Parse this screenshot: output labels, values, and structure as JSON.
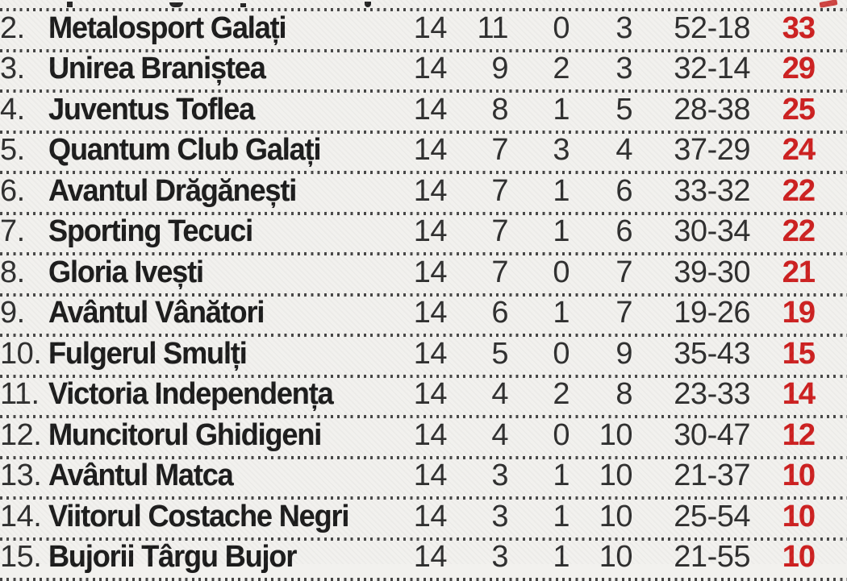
{
  "colors": {
    "background": "#f2f1ee",
    "team_text": "#1b1b1b",
    "stat_text": "#2e2e2e",
    "points_red": "#cd1f1f",
    "separator_dots": "#2e2e2e"
  },
  "table": {
    "description_visible_columns": [
      "position",
      "team",
      "played",
      "won",
      "drawn",
      "lost",
      "goals",
      "points"
    ],
    "rows": [
      {
        "pos": "2.",
        "team": "Metalosport Galați",
        "played": "14",
        "won": "11",
        "drawn": "0",
        "lost": "3",
        "goals": "52-18",
        "points": "33"
      },
      {
        "pos": "3.",
        "team": "Unirea Braniștea",
        "played": "14",
        "won": "9",
        "drawn": "2",
        "lost": "3",
        "goals": "32-14",
        "points": "29"
      },
      {
        "pos": "4.",
        "team": "Juventus Toflea",
        "played": "14",
        "won": "8",
        "drawn": "1",
        "lost": "5",
        "goals": "28-38",
        "points": "25"
      },
      {
        "pos": "5.",
        "team": "Quantum Club Galați",
        "played": "14",
        "won": "7",
        "drawn": "3",
        "lost": "4",
        "goals": "37-29",
        "points": "24"
      },
      {
        "pos": "6.",
        "team": "Avantul Drăgănești",
        "played": "14",
        "won": "7",
        "drawn": "1",
        "lost": "6",
        "goals": "33-32",
        "points": "22"
      },
      {
        "pos": "7.",
        "team": "Sporting Tecuci",
        "played": "14",
        "won": "7",
        "drawn": "1",
        "lost": "6",
        "goals": "30-34",
        "points": "22"
      },
      {
        "pos": "8.",
        "team": "Gloria Ivești",
        "played": "14",
        "won": "7",
        "drawn": "0",
        "lost": "7",
        "goals": "39-30",
        "points": "21"
      },
      {
        "pos": "9.",
        "team": "Avântul Vânători",
        "played": "14",
        "won": "6",
        "drawn": "1",
        "lost": "7",
        "goals": "19-26",
        "points": "19"
      },
      {
        "pos": "10.",
        "team": "Fulgerul Smulți",
        "played": "14",
        "won": "5",
        "drawn": "0",
        "lost": "9",
        "goals": "35-43",
        "points": "15"
      },
      {
        "pos": "11.",
        "team": "Victoria Independența",
        "played": "14",
        "won": "4",
        "drawn": "2",
        "lost": "8",
        "goals": "23-33",
        "points": "14"
      },
      {
        "pos": "12.",
        "team": "Muncitorul Ghidigeni",
        "played": "14",
        "won": "4",
        "drawn": "0",
        "lost": "10",
        "goals": "30-47",
        "points": "12"
      },
      {
        "pos": "13.",
        "team": "Avântul Matca",
        "played": "14",
        "won": "3",
        "drawn": "1",
        "lost": "10",
        "goals": "21-37",
        "points": "10"
      },
      {
        "pos": "14.",
        "team": "Viitorul Costache Negri",
        "played": "14",
        "won": "3",
        "drawn": "1",
        "lost": "10",
        "goals": "25-54",
        "points": "10"
      },
      {
        "pos": "15.",
        "team": "Bujorii Târgu Bujor",
        "played": "14",
        "won": "3",
        "drawn": "1",
        "lost": "10",
        "goals": "21-55",
        "points": "10"
      }
    ]
  }
}
